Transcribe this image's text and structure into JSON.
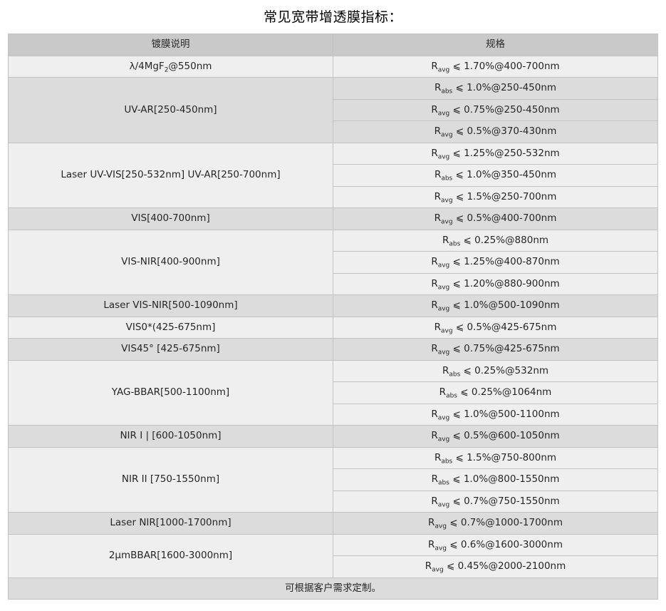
{
  "page": {
    "title": "常见宽带增透膜指标："
  },
  "colors": {
    "page_bg": "#ffffff",
    "header_bg": "#c9c9c9",
    "row_light": "#efefef",
    "row_dark": "#dcdcdc",
    "border": "#c3c3c3",
    "text": "#262626"
  },
  "table": {
    "headers": {
      "coating": "镀膜说明",
      "spec": "规格"
    },
    "groups": [
      {
        "desc": "λ/4MgF_{2}@550nm",
        "specs": [
          "R_{avg} ⩽ 1.70%@400-700nm"
        ]
      },
      {
        "desc": "UV-AR[250-450nm]",
        "specs": [
          "R_{abs} ⩽ 1.0%@250-450nm",
          "R_{avg} ⩽ 0.75%@250-450nm",
          "R_{avg} ⩽ 0.5%@370-430nm"
        ]
      },
      {
        "desc": "Laser UV-VIS[250-532nm] UV-AR[250-700nm]",
        "specs": [
          "R_{avg} ⩽ 1.25%@250-532nm",
          "R_{abs} ⩽ 1.0%@350-450nm",
          "R_{avg} ⩽ 1.5%@250-700nm"
        ]
      },
      {
        "desc": "VIS[400-700nm]",
        "specs": [
          "R_{avg} ⩽ 0.5%@400-700nm"
        ]
      },
      {
        "desc": "VIS-NIR[400-900nm]",
        "specs": [
          "R_{abs} ⩽ 0.25%@880nm",
          "R_{avg} ⩽ 1.25%@400-870nm",
          "R_{avg} ⩽ 1.20%@880-900nm"
        ]
      },
      {
        "desc": "Laser VIS-NIR[500-1090nm]",
        "specs": [
          "R_{avg} ⩽ 1.0%@500-1090nm"
        ]
      },
      {
        "desc": "VIS0*(425-675nm]",
        "specs": [
          "R_{avg} ⩽ 0.5%@425-675nm"
        ]
      },
      {
        "desc": "VIS45° [425-675nm]",
        "specs": [
          "R_{avg} ⩽ 0.75%@425-675nm"
        ]
      },
      {
        "desc": "YAG-BBAR[500-1100nm]",
        "specs": [
          "R_{abs} ⩽ 0.25%@532nm",
          "R_{abs} ⩽ 0.25%@1064nm",
          "R_{avg} ⩽ 1.0%@500-1100nm"
        ]
      },
      {
        "desc": "NIR I | [600-1050nm]",
        "specs": [
          "R_{avg} ⩽ 0.5%@600-1050nm"
        ]
      },
      {
        "desc": "NIR II [750-1550nm]",
        "specs": [
          "R_{abs} ⩽ 1.5%@750-800nm",
          "R_{abs} ⩽ 1.0%@800-1550nm",
          "R_{avg} ⩽ 0.7%@750-1550nm"
        ]
      },
      {
        "desc": "Laser NIR[1000-1700nm]",
        "specs": [
          "R_{avg} ⩽ 0.7%@1000-1700nm"
        ]
      },
      {
        "desc": "2μmBBAR[1600-3000nm]",
        "specs": [
          "R_{avg} ⩽ 0.6%@1600-3000nm",
          "R_{avg} ⩽ 0.45%@2000-2100nm"
        ]
      }
    ],
    "footer": "可根据客户需求定制。"
  }
}
